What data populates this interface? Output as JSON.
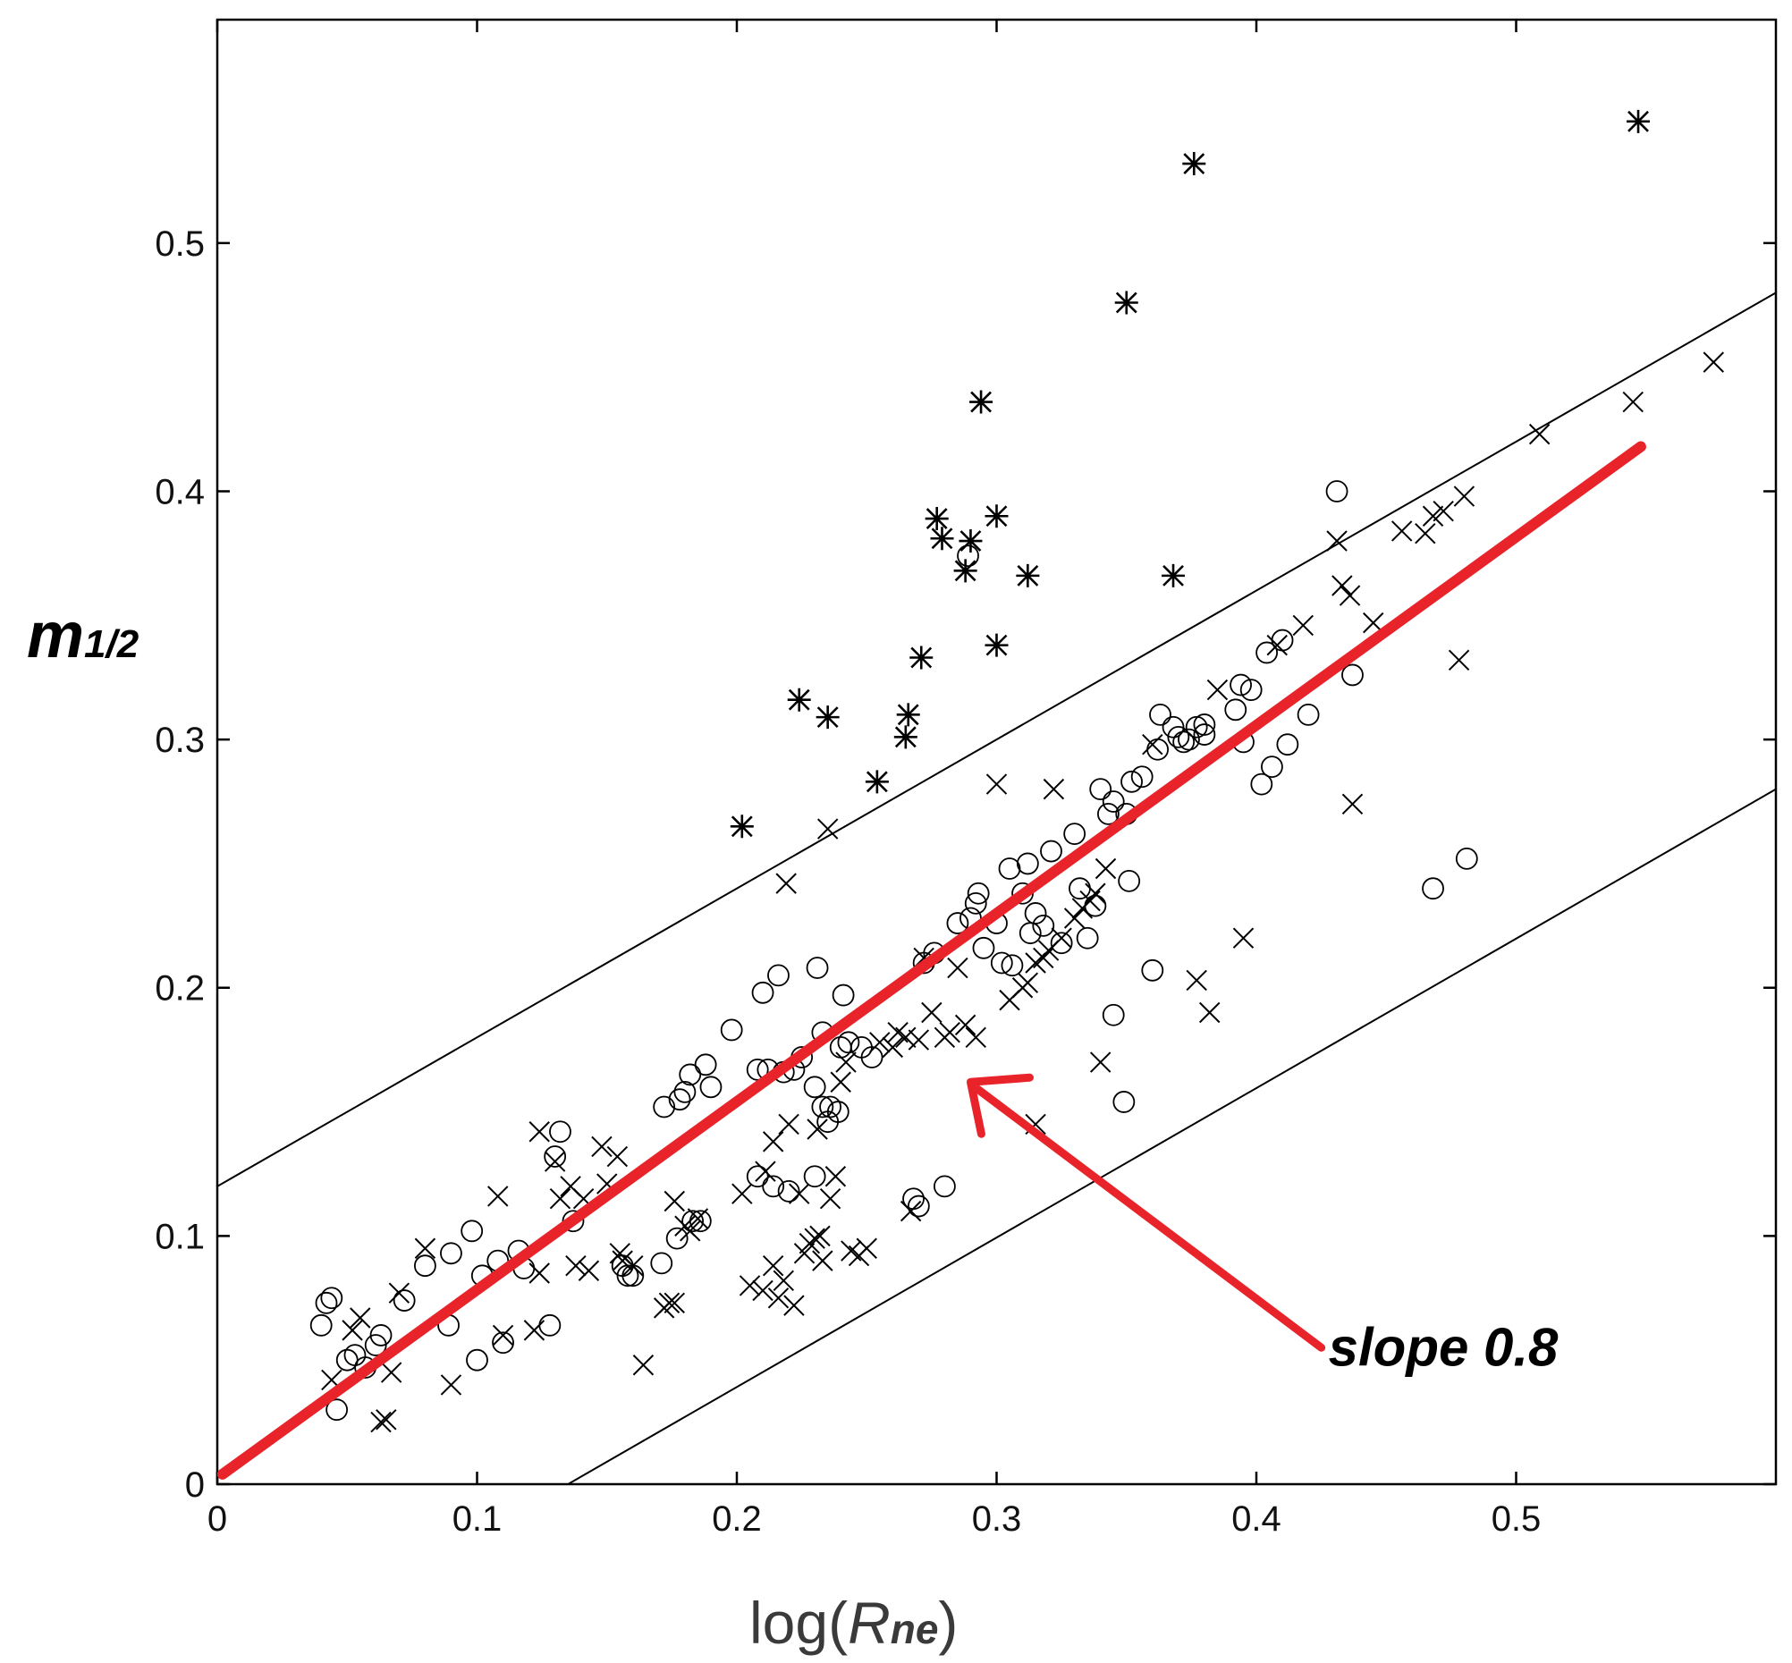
{
  "chart_data": {
    "type": "scatter",
    "xlabel": {
      "prefix": "log(",
      "italic": "R",
      "sub": "ne",
      "suffix": ")"
    },
    "ylabel": {
      "main": "m",
      "sub": "1/2"
    },
    "xlim": [
      0,
      0.6
    ],
    "ylim": [
      0,
      0.59
    ],
    "xticks": [
      0,
      0.1,
      0.2,
      0.3,
      0.4,
      0.5
    ],
    "xtick_labels": [
      "0",
      "0.1",
      "0.2",
      "0.3",
      "0.4",
      "0.5"
    ],
    "yticks": [
      0,
      0.1,
      0.2,
      0.3,
      0.4,
      0.5
    ],
    "ytick_labels": [
      "0",
      "0.1",
      "0.2",
      "0.3",
      "0.4",
      "0.5"
    ],
    "grid": false,
    "annotation": {
      "text": "slope 0.8",
      "arrow_to": [
        0.29,
        0.162
      ],
      "arrow_from": [
        0.425,
        0.055
      ]
    },
    "lines": [
      {
        "name": "fit",
        "color": "#e8232a",
        "x": [
          0.002,
          0.548
        ],
        "y": [
          0.004,
          0.418
        ]
      },
      {
        "name": "upper bound",
        "color": "#000000",
        "x": [
          0.0,
          0.6
        ],
        "y": [
          0.12,
          0.48
        ]
      },
      {
        "name": "lower bound",
        "color": "#000000",
        "x": [
          0.135,
          0.6
        ],
        "y": [
          0.0,
          0.28
        ]
      }
    ],
    "series": [
      {
        "name": "circles",
        "marker": "circle",
        "points": [
          [
            0.04,
            0.064
          ],
          [
            0.042,
            0.073
          ],
          [
            0.044,
            0.075
          ],
          [
            0.046,
            0.03
          ],
          [
            0.05,
            0.05
          ],
          [
            0.053,
            0.052
          ],
          [
            0.057,
            0.047
          ],
          [
            0.061,
            0.056
          ],
          [
            0.063,
            0.06
          ],
          [
            0.072,
            0.074
          ],
          [
            0.08,
            0.088
          ],
          [
            0.089,
            0.064
          ],
          [
            0.09,
            0.093
          ],
          [
            0.098,
            0.102
          ],
          [
            0.1,
            0.05
          ],
          [
            0.102,
            0.084
          ],
          [
            0.108,
            0.09
          ],
          [
            0.11,
            0.057
          ],
          [
            0.116,
            0.094
          ],
          [
            0.118,
            0.087
          ],
          [
            0.128,
            0.064
          ],
          [
            0.13,
            0.132
          ],
          [
            0.132,
            0.142
          ],
          [
            0.137,
            0.106
          ],
          [
            0.156,
            0.088
          ],
          [
            0.158,
            0.084
          ],
          [
            0.16,
            0.084
          ],
          [
            0.171,
            0.089
          ],
          [
            0.172,
            0.152
          ],
          [
            0.177,
            0.099
          ],
          [
            0.178,
            0.155
          ],
          [
            0.18,
            0.158
          ],
          [
            0.182,
            0.165
          ],
          [
            0.183,
            0.106
          ],
          [
            0.186,
            0.106
          ],
          [
            0.188,
            0.169
          ],
          [
            0.19,
            0.16
          ],
          [
            0.198,
            0.183
          ],
          [
            0.208,
            0.167
          ],
          [
            0.208,
            0.124
          ],
          [
            0.21,
            0.198
          ],
          [
            0.212,
            0.167
          ],
          [
            0.214,
            0.12
          ],
          [
            0.216,
            0.205
          ],
          [
            0.218,
            0.166
          ],
          [
            0.22,
            0.118
          ],
          [
            0.222,
            0.167
          ],
          [
            0.225,
            0.172
          ],
          [
            0.23,
            0.16
          ],
          [
            0.23,
            0.124
          ],
          [
            0.231,
            0.208
          ],
          [
            0.233,
            0.182
          ],
          [
            0.233,
            0.152
          ],
          [
            0.235,
            0.146
          ],
          [
            0.236,
            0.152
          ],
          [
            0.239,
            0.15
          ],
          [
            0.24,
            0.176
          ],
          [
            0.241,
            0.197
          ],
          [
            0.243,
            0.178
          ],
          [
            0.248,
            0.176
          ],
          [
            0.252,
            0.172
          ],
          [
            0.268,
            0.115
          ],
          [
            0.27,
            0.112
          ],
          [
            0.272,
            0.21
          ],
          [
            0.276,
            0.214
          ],
          [
            0.28,
            0.12
          ],
          [
            0.285,
            0.226
          ],
          [
            0.289,
            0.374
          ],
          [
            0.29,
            0.228
          ],
          [
            0.292,
            0.234
          ],
          [
            0.293,
            0.238
          ],
          [
            0.295,
            0.216
          ],
          [
            0.3,
            0.226
          ],
          [
            0.302,
            0.21
          ],
          [
            0.305,
            0.248
          ],
          [
            0.306,
            0.209
          ],
          [
            0.31,
            0.238
          ],
          [
            0.312,
            0.25
          ],
          [
            0.313,
            0.222
          ],
          [
            0.315,
            0.23
          ],
          [
            0.318,
            0.225
          ],
          [
            0.321,
            0.255
          ],
          [
            0.325,
            0.218
          ],
          [
            0.33,
            0.262
          ],
          [
            0.332,
            0.24
          ],
          [
            0.335,
            0.22
          ],
          [
            0.338,
            0.233
          ],
          [
            0.34,
            0.28
          ],
          [
            0.343,
            0.27
          ],
          [
            0.345,
            0.189
          ],
          [
            0.345,
            0.275
          ],
          [
            0.349,
            0.154
          ],
          [
            0.35,
            0.27
          ],
          [
            0.351,
            0.243
          ],
          [
            0.352,
            0.283
          ],
          [
            0.356,
            0.285
          ],
          [
            0.36,
            0.207
          ],
          [
            0.362,
            0.296
          ],
          [
            0.363,
            0.31
          ],
          [
            0.368,
            0.305
          ],
          [
            0.37,
            0.301
          ],
          [
            0.372,
            0.299
          ],
          [
            0.374,
            0.3
          ],
          [
            0.377,
            0.305
          ],
          [
            0.38,
            0.306
          ],
          [
            0.38,
            0.302
          ],
          [
            0.392,
            0.312
          ],
          [
            0.394,
            0.322
          ],
          [
            0.395,
            0.299
          ],
          [
            0.398,
            0.32
          ],
          [
            0.402,
            0.282
          ],
          [
            0.404,
            0.335
          ],
          [
            0.406,
            0.289
          ],
          [
            0.41,
            0.34
          ],
          [
            0.412,
            0.298
          ],
          [
            0.42,
            0.31
          ],
          [
            0.431,
            0.4
          ],
          [
            0.437,
            0.326
          ],
          [
            0.468,
            0.24
          ],
          [
            0.481,
            0.252
          ]
        ]
      },
      {
        "name": "crosses",
        "marker": "x",
        "points": [
          [
            0.044,
            0.042
          ],
          [
            0.052,
            0.062
          ],
          [
            0.055,
            0.067
          ],
          [
            0.063,
            0.025
          ],
          [
            0.065,
            0.026
          ],
          [
            0.067,
            0.045
          ],
          [
            0.07,
            0.077
          ],
          [
            0.08,
            0.095
          ],
          [
            0.09,
            0.04
          ],
          [
            0.108,
            0.116
          ],
          [
            0.11,
            0.06
          ],
          [
            0.122,
            0.062
          ],
          [
            0.124,
            0.085
          ],
          [
            0.124,
            0.142
          ],
          [
            0.13,
            0.13
          ],
          [
            0.132,
            0.115
          ],
          [
            0.136,
            0.12
          ],
          [
            0.138,
            0.088
          ],
          [
            0.141,
            0.115
          ],
          [
            0.143,
            0.086
          ],
          [
            0.148,
            0.136
          ],
          [
            0.15,
            0.121
          ],
          [
            0.154,
            0.132
          ],
          [
            0.156,
            0.09
          ],
          [
            0.16,
            0.088
          ],
          [
            0.164,
            0.048
          ],
          [
            0.172,
            0.071
          ],
          [
            0.174,
            0.073
          ],
          [
            0.176,
            0.073
          ],
          [
            0.176,
            0.114
          ],
          [
            0.18,
            0.104
          ],
          [
            0.182,
            0.102
          ],
          [
            0.202,
            0.117
          ],
          [
            0.205,
            0.08
          ],
          [
            0.21,
            0.078
          ],
          [
            0.211,
            0.126
          ],
          [
            0.214,
            0.088
          ],
          [
            0.214,
            0.138
          ],
          [
            0.216,
            0.075
          ],
          [
            0.218,
            0.082
          ],
          [
            0.219,
            0.242
          ],
          [
            0.22,
            0.145
          ],
          [
            0.222,
            0.072
          ],
          [
            0.224,
            0.117
          ],
          [
            0.226,
            0.093
          ],
          [
            0.228,
            0.097
          ],
          [
            0.23,
            0.099
          ],
          [
            0.231,
            0.143
          ],
          [
            0.232,
            0.1
          ],
          [
            0.233,
            0.09
          ],
          [
            0.235,
            0.264
          ],
          [
            0.236,
            0.115
          ],
          [
            0.238,
            0.124
          ],
          [
            0.24,
            0.162
          ],
          [
            0.242,
            0.17
          ],
          [
            0.244,
            0.094
          ],
          [
            0.247,
            0.092
          ],
          [
            0.25,
            0.095
          ],
          [
            0.255,
            0.178
          ],
          [
            0.26,
            0.176
          ],
          [
            0.262,
            0.182
          ],
          [
            0.265,
            0.18
          ],
          [
            0.267,
            0.11
          ],
          [
            0.27,
            0.179
          ],
          [
            0.272,
            0.212
          ],
          [
            0.275,
            0.19
          ],
          [
            0.28,
            0.18
          ],
          [
            0.282,
            0.182
          ],
          [
            0.285,
            0.208
          ],
          [
            0.288,
            0.185
          ],
          [
            0.292,
            0.18
          ],
          [
            0.3,
            0.282
          ],
          [
            0.305,
            0.195
          ],
          [
            0.31,
            0.2
          ],
          [
            0.312,
            0.202
          ],
          [
            0.315,
            0.21
          ],
          [
            0.318,
            0.212
          ],
          [
            0.32,
            0.215
          ],
          [
            0.322,
            0.28
          ],
          [
            0.325,
            0.22
          ],
          [
            0.33,
            0.228
          ],
          [
            0.333,
            0.232
          ],
          [
            0.336,
            0.235
          ],
          [
            0.338,
            0.238
          ],
          [
            0.34,
            0.17
          ],
          [
            0.342,
            0.248
          ],
          [
            0.36,
            0.298
          ],
          [
            0.377,
            0.203
          ],
          [
            0.382,
            0.19
          ],
          [
            0.385,
            0.32
          ],
          [
            0.395,
            0.22
          ],
          [
            0.408,
            0.338
          ],
          [
            0.418,
            0.346
          ],
          [
            0.431,
            0.38
          ],
          [
            0.433,
            0.362
          ],
          [
            0.436,
            0.358
          ],
          [
            0.437,
            0.274
          ],
          [
            0.445,
            0.347
          ],
          [
            0.456,
            0.384
          ],
          [
            0.465,
            0.383
          ],
          [
            0.468,
            0.39
          ],
          [
            0.472,
            0.392
          ],
          [
            0.478,
            0.332
          ],
          [
            0.48,
            0.398
          ],
          [
            0.509,
            0.423
          ],
          [
            0.545,
            0.436
          ],
          [
            0.576,
            0.452
          ],
          [
            0.155,
            0.093
          ],
          [
            0.185,
            0.107
          ],
          [
            0.315,
            0.145
          ]
        ]
      },
      {
        "name": "stars",
        "marker": "asterisk",
        "points": [
          [
            0.202,
            0.265
          ],
          [
            0.224,
            0.316
          ],
          [
            0.235,
            0.309
          ],
          [
            0.254,
            0.283
          ],
          [
            0.265,
            0.301
          ],
          [
            0.266,
            0.31
          ],
          [
            0.271,
            0.333
          ],
          [
            0.277,
            0.389
          ],
          [
            0.279,
            0.381
          ],
          [
            0.288,
            0.368
          ],
          [
            0.29,
            0.38
          ],
          [
            0.294,
            0.436
          ],
          [
            0.3,
            0.39
          ],
          [
            0.3,
            0.338
          ],
          [
            0.312,
            0.366
          ],
          [
            0.35,
            0.476
          ],
          [
            0.368,
            0.366
          ],
          [
            0.376,
            0.532
          ],
          [
            0.547,
            0.549
          ]
        ]
      }
    ]
  }
}
